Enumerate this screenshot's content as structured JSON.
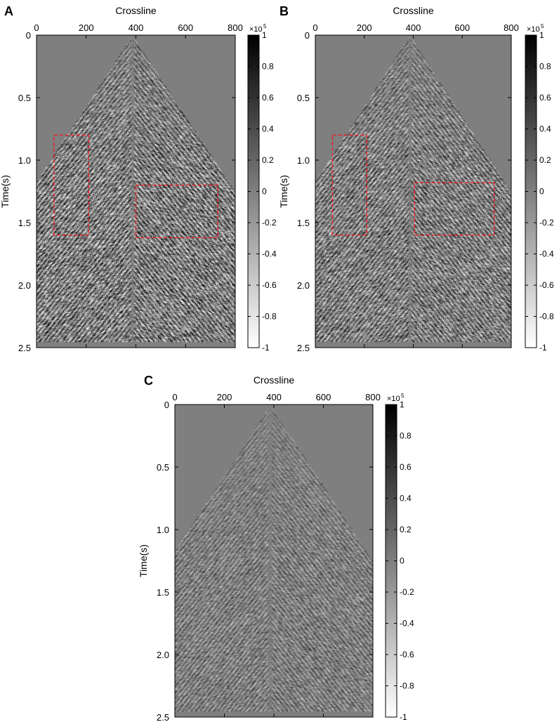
{
  "chart_data": [
    {
      "type": "heatmap",
      "panel_label": "A",
      "xlabel": "Crossline",
      "ylabel": "Time(s)",
      "xlim": [
        0,
        800
      ],
      "ylim": [
        0,
        2.5
      ],
      "y_reversed": true,
      "x_ticks": [
        0,
        200,
        400,
        600,
        800
      ],
      "x_tick_labels": [
        "0",
        "200",
        "400",
        "600",
        "800"
      ],
      "y_ticks": [
        0,
        0.5,
        1.0,
        1.5,
        2.0,
        2.5
      ],
      "y_tick_labels": [
        "0",
        "0.5",
        "1.0",
        "1.5",
        "2.0",
        "2.5"
      ],
      "colorbar": {
        "range": [
          -1,
          1
        ],
        "multiplier": "×10",
        "exponent": "5",
        "ticks": [
          1,
          0.8,
          0.6,
          0.4,
          0.2,
          0,
          -0.2,
          -0.4,
          -0.6,
          -0.8,
          -1
        ],
        "tick_labels": [
          "1",
          "0.8",
          "0.6",
          "0.4",
          "0.2",
          "0",
          "-0.2",
          "-0.4",
          "-0.6",
          "-0.8",
          "-1"
        ],
        "colormap": "gray (black = max, white = min)"
      },
      "annotations": [
        {
          "shape": "dashed-rect",
          "color": "#e8222a",
          "x": [
            70,
            210
          ],
          "y": [
            0.8,
            1.6
          ]
        },
        {
          "shape": "dashed-rect",
          "color": "#e8222a",
          "x": [
            400,
            730
          ],
          "y": [
            1.2,
            1.62
          ]
        }
      ],
      "style": {
        "background": "#7f7f7f",
        "noise_contrast": 1.0,
        "seed": 11
      }
    },
    {
      "type": "heatmap",
      "panel_label": "B",
      "xlabel": "Crossline",
      "ylabel": "Time(s)",
      "xlim": [
        0,
        800
      ],
      "ylim": [
        0,
        2.5
      ],
      "y_reversed": true,
      "x_ticks": [
        0,
        200,
        400,
        600,
        800
      ],
      "x_tick_labels": [
        "0",
        "200",
        "400",
        "600",
        "800"
      ],
      "y_ticks": [
        0,
        0.5,
        1.0,
        1.5,
        2.0,
        2.5
      ],
      "y_tick_labels": [
        "0",
        "0.5",
        "1.0",
        "1.5",
        "2.0",
        "2.5"
      ],
      "colorbar": {
        "range": [
          -1,
          1
        ],
        "multiplier": "×10",
        "exponent": "5",
        "ticks": [
          1,
          0.8,
          0.6,
          0.4,
          0.2,
          0,
          -0.2,
          -0.4,
          -0.6,
          -0.8,
          -1
        ],
        "tick_labels": [
          "1",
          "0.8",
          "0.6",
          "0.4",
          "0.2",
          "0",
          "-0.2",
          "-0.4",
          "-0.6",
          "-0.8",
          "-1"
        ],
        "colormap": "gray (black = max, white = min)"
      },
      "annotations": [
        {
          "shape": "dashed-rect",
          "color": "#e8222a",
          "x": [
            70,
            210
          ],
          "y": [
            0.8,
            1.6
          ]
        },
        {
          "shape": "dashed-rect",
          "color": "#e8222a",
          "x": [
            405,
            730
          ],
          "y": [
            1.18,
            1.6
          ]
        }
      ],
      "style": {
        "background": "#7f7f7f",
        "noise_contrast": 0.85,
        "seed": 23
      }
    },
    {
      "type": "heatmap",
      "panel_label": "C",
      "xlabel": "Crossline",
      "ylabel": "Time(s)",
      "xlim": [
        0,
        800
      ],
      "ylim": [
        0,
        2.5
      ],
      "y_reversed": true,
      "x_ticks": [
        0,
        200,
        400,
        600,
        800
      ],
      "x_tick_labels": [
        "0",
        "200",
        "400",
        "600",
        "800"
      ],
      "y_ticks": [
        0,
        0.5,
        1.0,
        1.5,
        2.0,
        2.5
      ],
      "y_tick_labels": [
        "0",
        "0.5",
        "1.0",
        "1.5",
        "2.0",
        "2.5"
      ],
      "colorbar": {
        "range": [
          -1,
          1
        ],
        "multiplier": "×10",
        "exponent": "5",
        "ticks": [
          1,
          0.8,
          0.6,
          0.4,
          0.2,
          0,
          -0.2,
          -0.4,
          -0.6,
          -0.8,
          -1
        ],
        "tick_labels": [
          "1",
          "0.8",
          "0.6",
          "0.4",
          "0.2",
          "0",
          "-0.2",
          "-0.4",
          "-0.6",
          "-0.8",
          "-1"
        ],
        "colormap": "gray (black = max, white = min)"
      },
      "annotations": [],
      "style": {
        "background": "#7f7f7f",
        "noise_contrast": 0.55,
        "seed": 37
      }
    }
  ]
}
